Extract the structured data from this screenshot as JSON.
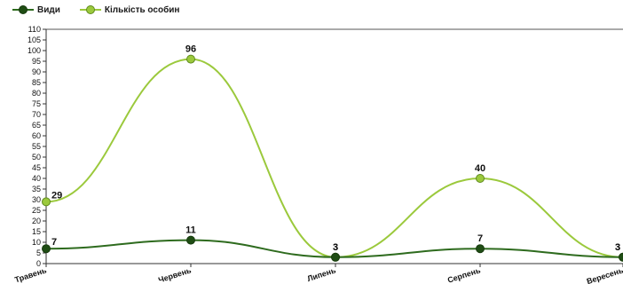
{
  "chart_data": {
    "type": "line",
    "categories": [
      "Травень",
      "Червень",
      "Липень",
      "Серпень",
      "Вересень"
    ],
    "ylim": [
      0,
      110
    ],
    "yticks": [
      0,
      5,
      10,
      15,
      20,
      25,
      30,
      35,
      40,
      45,
      50,
      55,
      60,
      65,
      70,
      75,
      80,
      85,
      90,
      95,
      100,
      105,
      110
    ],
    "grid": false,
    "legend_position": "top-left",
    "smooth": true,
    "series": [
      {
        "name": "Види",
        "values": [
          7,
          11,
          3,
          7,
          3
        ],
        "line_color": "#2e6b1e",
        "marker_color": "#1f4d14",
        "marker_stroke": "#173a0f"
      },
      {
        "name": "Кількість особин",
        "values": [
          29,
          96,
          3,
          40,
          3
        ],
        "line_color": "#9bc93c",
        "marker_color": "#9bc93c",
        "marker_stroke": "#5f8a1e"
      }
    ]
  }
}
